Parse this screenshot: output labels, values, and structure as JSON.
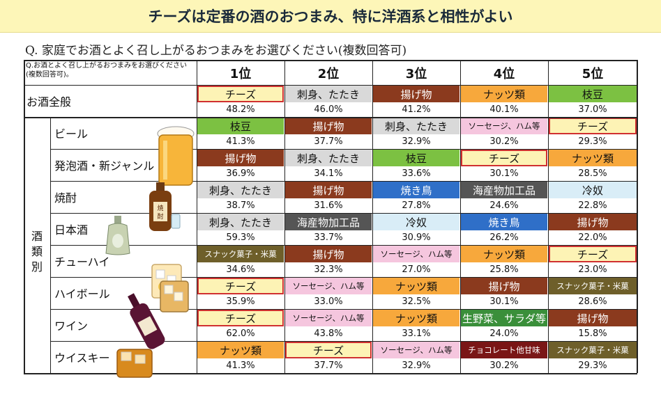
{
  "title": "チーズは定番の酒のおつまみ、特に洋酒系と相性がよい",
  "question": "Q. 家庭でお酒とよく召し上がるおつまみをお選びください(複数回答可)",
  "chart_data": {
    "type": "table",
    "header_question": "Q.お酒とよく召し上がるおつまみをお選びください(複数回答可)。",
    "ranks": [
      "1位",
      "2位",
      "3位",
      "4位",
      "5位"
    ],
    "category_label": "酒類別",
    "colors": {
      "チーズ": "#fdf3b5",
      "刺身、たたき": "#d9d9d9",
      "揚げ物": "#8b3a1e",
      "ナッツ類": "#f7a83c",
      "枝豆": "#7cc142",
      "ソーセージ、ハム等": "#f5c6de",
      "焼き鳥": "#2f6fc8",
      "海産物加工品": "#555555",
      "冷奴": "#d9edf7",
      "スナック菓子・米菓": "#6e5f2a",
      "生野菜、サラダ等": "#3a8f3a",
      "チョコレート他甘味": "#7a1616",
      "highlight": "#d03030"
    },
    "rows": [
      {
        "label": "お酒全般",
        "items": [
          "チーズ",
          "刺身、たたき",
          "揚げ物",
          "ナッツ類",
          "枝豆"
        ],
        "values": [
          48.2,
          46.0,
          41.2,
          40.1,
          37.0
        ],
        "value_labels": [
          "48.2%",
          "46.0%",
          "41.2%",
          "40.1%",
          "37.0%"
        ]
      },
      {
        "label": "ビール",
        "items": [
          "枝豆",
          "揚げ物",
          "刺身、たたき",
          "ソーセージ、ハム等",
          "チーズ"
        ],
        "values": [
          41.3,
          37.7,
          32.9,
          30.2,
          29.3
        ],
        "value_labels": [
          "41.3%",
          "37.7%",
          "32.9%",
          "30.2%",
          "29.3%"
        ]
      },
      {
        "label": "発泡酒・新ジャンル",
        "items": [
          "揚げ物",
          "刺身、たたき",
          "枝豆",
          "チーズ",
          "ナッツ類"
        ],
        "values": [
          36.9,
          34.1,
          33.6,
          30.1,
          28.5
        ],
        "value_labels": [
          "36.9%",
          "34.1%",
          "33.6%",
          "30.1%",
          "28.5%"
        ]
      },
      {
        "label": "焼酎",
        "items": [
          "刺身、たたき",
          "揚げ物",
          "焼き鳥",
          "海産物加工品",
          "冷奴"
        ],
        "values": [
          38.7,
          31.6,
          27.8,
          24.6,
          22.8
        ],
        "value_labels": [
          "38.7%",
          "31.6%",
          "27.8%",
          "24.6%",
          "22.8%"
        ]
      },
      {
        "label": "日本酒",
        "items": [
          "刺身、たたき",
          "海産物加工品",
          "冷奴",
          "焼き鳥",
          "揚げ物"
        ],
        "values": [
          59.3,
          33.7,
          30.9,
          26.2,
          22.0
        ],
        "value_labels": [
          "59.3%",
          "33.7%",
          "30.9%",
          "26.2%",
          "22.0%"
        ]
      },
      {
        "label": "チューハイ",
        "items": [
          "スナック菓子・米菓",
          "揚げ物",
          "ソーセージ、ハム等",
          "ナッツ類",
          "チーズ"
        ],
        "values": [
          34.6,
          32.3,
          27.0,
          25.8,
          23.0
        ],
        "value_labels": [
          "34.6%",
          "32.3%",
          "27.0%",
          "25.8%",
          "23.0%"
        ]
      },
      {
        "label": "ハイボール",
        "items": [
          "チーズ",
          "ソーセージ、ハム等",
          "ナッツ類",
          "揚げ物",
          "スナック菓子・米菓"
        ],
        "values": [
          35.9,
          33.0,
          32.5,
          30.1,
          28.6
        ],
        "value_labels": [
          "35.9%",
          "33.0%",
          "32.5%",
          "30.1%",
          "28.6%"
        ]
      },
      {
        "label": "ワイン",
        "items": [
          "チーズ",
          "ソーセージ、ハム等",
          "ナッツ類",
          "生野菜、サラダ等",
          "揚げ物"
        ],
        "values": [
          62.0,
          43.8,
          33.1,
          24.0,
          15.8
        ],
        "value_labels": [
          "62.0%",
          "43.8%",
          "33.1%",
          "24.0%",
          "15.8%"
        ]
      },
      {
        "label": "ウイスキー",
        "items": [
          "ナッツ類",
          "チーズ",
          "ソーセージ、ハム等",
          "チョコレート他甘味",
          "スナック菓子・米菓"
        ],
        "values": [
          41.3,
          37.7,
          32.9,
          30.2,
          29.3
        ],
        "value_labels": [
          "41.3%",
          "37.7%",
          "32.9%",
          "30.2%",
          "29.3%"
        ]
      }
    ]
  }
}
